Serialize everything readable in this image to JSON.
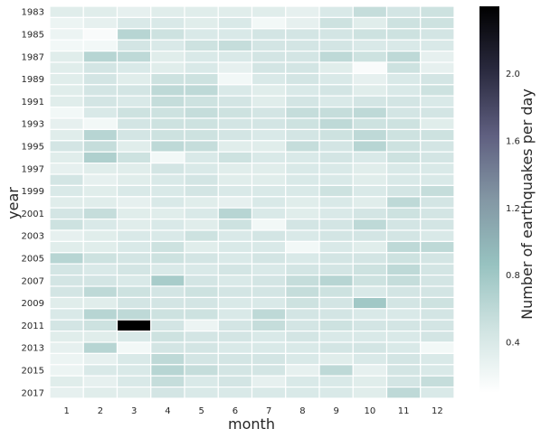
{
  "chart_data": {
    "type": "heatmap",
    "xlabel": "month",
    "ylabel": "year",
    "colorbar_label": "Number of earthquakes per day",
    "x_categories": [
      "1",
      "2",
      "3",
      "4",
      "5",
      "6",
      "7",
      "8",
      "9",
      "10",
      "11",
      "12"
    ],
    "y_categories": [
      "1983",
      "1984",
      "1985",
      "1986",
      "1987",
      "1988",
      "1989",
      "1990",
      "1991",
      "1992",
      "1993",
      "1994",
      "1995",
      "1996",
      "1997",
      "1998",
      "1999",
      "2000",
      "2001",
      "2002",
      "2003",
      "2004",
      "2005",
      "2006",
      "2007",
      "2008",
      "2009",
      "2010",
      "2011",
      "2012",
      "2013",
      "2014",
      "2015",
      "2016",
      "2017"
    ],
    "y_tick_labels": [
      "1983",
      "1985",
      "1987",
      "1989",
      "1991",
      "1993",
      "1995",
      "1997",
      "1999",
      "2001",
      "2003",
      "2005",
      "2007",
      "2009",
      "2011",
      "2013",
      "2015",
      "2017"
    ],
    "colorbar_ticks": [
      0.4,
      0.8,
      1.2,
      1.6,
      2.0
    ],
    "colorbar_tick_labels": [
      "0.4",
      "0.8",
      "1.2",
      "1.6",
      "2.0"
    ],
    "value_range": [
      0.1,
      2.4
    ],
    "colormap_stops": [
      "#ffffff",
      "#cfe3e1",
      "#97c2c0",
      "#8397a4",
      "#5f5f80",
      "#2a2a3f",
      "#000000"
    ],
    "values": [
      [
        0.35,
        0.35,
        0.3,
        0.35,
        0.35,
        0.35,
        0.35,
        0.3,
        0.4,
        0.55,
        0.45,
        0.5
      ],
      [
        0.25,
        0.3,
        0.4,
        0.4,
        0.35,
        0.4,
        0.2,
        0.3,
        0.5,
        0.35,
        0.5,
        0.5
      ],
      [
        0.25,
        0.15,
        0.65,
        0.5,
        0.4,
        0.4,
        0.45,
        0.45,
        0.45,
        0.5,
        0.5,
        0.45
      ],
      [
        0.2,
        0.2,
        0.45,
        0.4,
        0.5,
        0.55,
        0.45,
        0.45,
        0.45,
        0.4,
        0.4,
        0.4
      ],
      [
        0.35,
        0.65,
        0.6,
        0.35,
        0.4,
        0.4,
        0.45,
        0.45,
        0.6,
        0.5,
        0.6,
        0.3
      ],
      [
        0.35,
        0.45,
        0.4,
        0.35,
        0.4,
        0.3,
        0.45,
        0.45,
        0.35,
        0.15,
        0.5,
        0.3
      ],
      [
        0.35,
        0.45,
        0.35,
        0.5,
        0.5,
        0.2,
        0.4,
        0.45,
        0.4,
        0.3,
        0.4,
        0.45
      ],
      [
        0.35,
        0.45,
        0.45,
        0.6,
        0.6,
        0.4,
        0.35,
        0.4,
        0.45,
        0.35,
        0.4,
        0.5
      ],
      [
        0.35,
        0.45,
        0.4,
        0.55,
        0.5,
        0.45,
        0.35,
        0.45,
        0.4,
        0.45,
        0.45,
        0.4
      ],
      [
        0.2,
        0.4,
        0.5,
        0.5,
        0.55,
        0.5,
        0.45,
        0.55,
        0.55,
        0.6,
        0.45,
        0.45
      ],
      [
        0.3,
        0.2,
        0.45,
        0.5,
        0.5,
        0.45,
        0.45,
        0.5,
        0.6,
        0.5,
        0.5,
        0.35
      ],
      [
        0.35,
        0.65,
        0.45,
        0.5,
        0.5,
        0.45,
        0.4,
        0.45,
        0.5,
        0.6,
        0.5,
        0.5
      ],
      [
        0.45,
        0.55,
        0.35,
        0.6,
        0.55,
        0.35,
        0.35,
        0.55,
        0.45,
        0.65,
        0.5,
        0.45
      ],
      [
        0.35,
        0.7,
        0.5,
        0.2,
        0.4,
        0.5,
        0.4,
        0.4,
        0.45,
        0.4,
        0.5,
        0.45
      ],
      [
        0.3,
        0.35,
        0.35,
        0.45,
        0.4,
        0.35,
        0.35,
        0.4,
        0.4,
        0.35,
        0.4,
        0.4
      ],
      [
        0.45,
        0.3,
        0.35,
        0.4,
        0.45,
        0.35,
        0.35,
        0.4,
        0.4,
        0.35,
        0.4,
        0.4
      ],
      [
        0.4,
        0.35,
        0.4,
        0.4,
        0.45,
        0.4,
        0.4,
        0.4,
        0.5,
        0.4,
        0.45,
        0.55
      ],
      [
        0.35,
        0.35,
        0.3,
        0.4,
        0.35,
        0.3,
        0.4,
        0.35,
        0.4,
        0.35,
        0.6,
        0.45
      ],
      [
        0.45,
        0.55,
        0.35,
        0.35,
        0.4,
        0.65,
        0.4,
        0.35,
        0.4,
        0.45,
        0.5,
        0.45
      ],
      [
        0.5,
        0.4,
        0.35,
        0.4,
        0.35,
        0.5,
        0.2,
        0.45,
        0.45,
        0.6,
        0.45,
        0.45
      ],
      [
        0.3,
        0.35,
        0.4,
        0.4,
        0.5,
        0.4,
        0.45,
        0.4,
        0.45,
        0.45,
        0.45,
        0.4
      ],
      [
        0.35,
        0.35,
        0.4,
        0.5,
        0.35,
        0.4,
        0.4,
        0.2,
        0.4,
        0.35,
        0.6,
        0.6
      ],
      [
        0.65,
        0.5,
        0.45,
        0.5,
        0.45,
        0.4,
        0.45,
        0.4,
        0.45,
        0.45,
        0.5,
        0.45
      ],
      [
        0.45,
        0.4,
        0.45,
        0.4,
        0.4,
        0.45,
        0.4,
        0.45,
        0.45,
        0.5,
        0.6,
        0.45
      ],
      [
        0.45,
        0.45,
        0.4,
        0.75,
        0.45,
        0.4,
        0.45,
        0.55,
        0.65,
        0.5,
        0.55,
        0.45
      ],
      [
        0.45,
        0.6,
        0.5,
        0.45,
        0.5,
        0.45,
        0.45,
        0.55,
        0.5,
        0.4,
        0.45,
        0.45
      ],
      [
        0.35,
        0.35,
        0.45,
        0.45,
        0.45,
        0.4,
        0.4,
        0.5,
        0.45,
        0.8,
        0.45,
        0.5
      ],
      [
        0.4,
        0.65,
        0.6,
        0.5,
        0.5,
        0.4,
        0.6,
        0.45,
        0.45,
        0.4,
        0.4,
        0.45
      ],
      [
        0.45,
        0.5,
        2.4,
        0.45,
        0.25,
        0.45,
        0.55,
        0.45,
        0.5,
        0.45,
        0.45,
        0.45
      ],
      [
        0.35,
        0.35,
        0.4,
        0.5,
        0.45,
        0.45,
        0.4,
        0.45,
        0.4,
        0.4,
        0.4,
        0.45
      ],
      [
        0.3,
        0.65,
        0.2,
        0.45,
        0.45,
        0.4,
        0.4,
        0.4,
        0.45,
        0.45,
        0.4,
        0.2
      ],
      [
        0.25,
        0.3,
        0.4,
        0.6,
        0.45,
        0.45,
        0.45,
        0.4,
        0.35,
        0.4,
        0.45,
        0.4
      ],
      [
        0.25,
        0.4,
        0.4,
        0.65,
        0.55,
        0.45,
        0.45,
        0.3,
        0.6,
        0.3,
        0.45,
        0.4
      ],
      [
        0.35,
        0.3,
        0.4,
        0.55,
        0.4,
        0.45,
        0.3,
        0.4,
        0.4,
        0.35,
        0.45,
        0.55
      ],
      [
        0.3,
        0.35,
        0.35,
        0.45,
        0.4,
        0.4,
        0.4,
        0.4,
        0.4,
        0.35,
        0.6,
        0.4
      ]
    ]
  }
}
